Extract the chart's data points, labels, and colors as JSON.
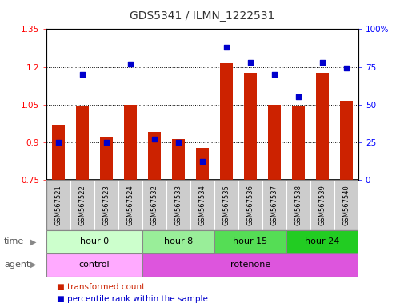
{
  "title": "GDS5341 / ILMN_1222531",
  "samples": [
    "GSM567521",
    "GSM567522",
    "GSM567523",
    "GSM567524",
    "GSM567532",
    "GSM567533",
    "GSM567534",
    "GSM567535",
    "GSM567536",
    "GSM567537",
    "GSM567538",
    "GSM567539",
    "GSM567540"
  ],
  "bar_values": [
    0.97,
    1.045,
    0.92,
    1.05,
    0.94,
    0.91,
    0.875,
    1.215,
    1.175,
    1.05,
    1.045,
    1.175,
    1.065
  ],
  "dot_values": [
    25,
    70,
    25,
    77,
    27,
    25,
    12,
    88,
    78,
    70,
    55,
    78,
    74
  ],
  "bar_bottom": 0.75,
  "ylim_left": [
    0.75,
    1.35
  ],
  "ylim_right": [
    0,
    100
  ],
  "yticks_left": [
    0.75,
    0.9,
    1.05,
    1.2,
    1.35
  ],
  "yticks_right": [
    0,
    25,
    50,
    75,
    100
  ],
  "ytick_labels_left": [
    "0.75",
    "0.9",
    "1.05",
    "1.2",
    "1.35"
  ],
  "ytick_labels_right": [
    "0",
    "25",
    "50",
    "75",
    "100%"
  ],
  "bar_color": "#cc2200",
  "dot_color": "#0000cc",
  "grid_color": "#000000",
  "time_groups": [
    {
      "label": "hour 0",
      "start": 0,
      "end": 4,
      "color": "#ccffcc"
    },
    {
      "label": "hour 8",
      "start": 4,
      "end": 7,
      "color": "#99ee99"
    },
    {
      "label": "hour 15",
      "start": 7,
      "end": 10,
      "color": "#55dd55"
    },
    {
      "label": "hour 24",
      "start": 10,
      "end": 13,
      "color": "#22cc22"
    }
  ],
  "agent_groups": [
    {
      "label": "control",
      "start": 0,
      "end": 4,
      "color": "#ffaaff"
    },
    {
      "label": "rotenone",
      "start": 4,
      "end": 13,
      "color": "#dd55dd"
    }
  ],
  "time_label": "time",
  "agent_label": "agent",
  "legend1": "transformed count",
  "legend2": "percentile rank within the sample",
  "bar_width": 0.55,
  "sample_bg": "#cccccc",
  "sample_border": "#aaaaaa",
  "plot_bg": "#ffffff"
}
